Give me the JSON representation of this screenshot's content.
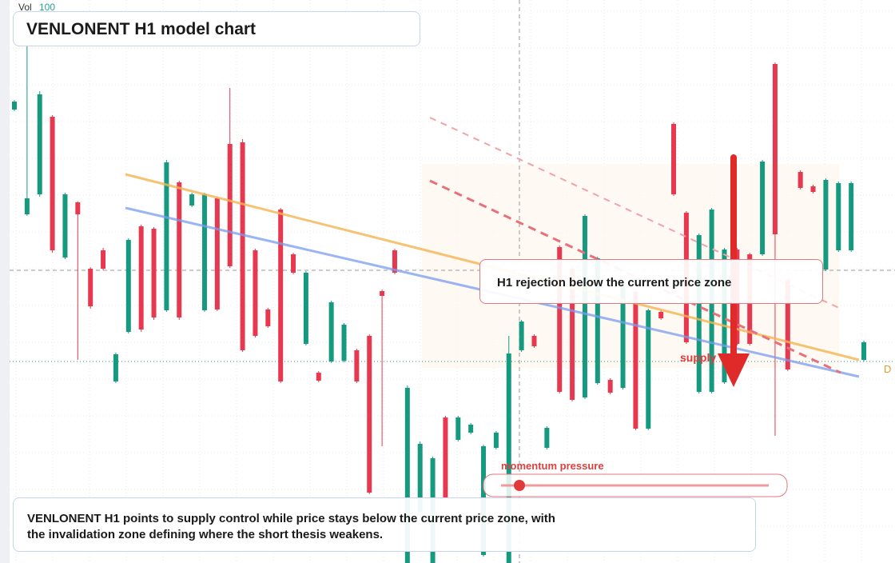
{
  "vol_label": "Vol",
  "vol_value": "100",
  "title": "VENLONENT H1 model chart",
  "annotation": "H1 rejection below the current price zone",
  "zone_label": "supply",
  "slider_label": "momentum pressure",
  "edge_label": "D",
  "description": "VENLONENT H1 points to supply control while price stays below the current price zone, with the invalidation zone defining where the short thesis weakens.",
  "chart_data": {
    "type": "candlestick",
    "ylim": [
      0,
      704
    ],
    "up_color": "#159a80",
    "down_color": "#e8384f",
    "candles": [
      {
        "o": 567,
        "h": 579,
        "l": 565,
        "c": 577
      },
      {
        "o": 436,
        "h": 646,
        "l": 434,
        "c": 456
      },
      {
        "o": 461,
        "h": 590,
        "l": 458,
        "c": 586
      },
      {
        "o": 558,
        "h": 560,
        "l": 388,
        "c": 391
      },
      {
        "o": 382,
        "h": 463,
        "l": 380,
        "c": 461
      },
      {
        "o": 451,
        "h": 452,
        "l": 254,
        "c": 436
      },
      {
        "o": 368,
        "h": 370,
        "l": 318,
        "c": 321
      },
      {
        "o": 391,
        "h": 394,
        "l": 366,
        "c": 368
      },
      {
        "o": 227,
        "h": 263,
        "l": 225,
        "c": 261
      },
      {
        "o": 289,
        "h": 406,
        "l": 287,
        "c": 404
      },
      {
        "o": 421,
        "h": 423,
        "l": 289,
        "c": 292
      },
      {
        "o": 418,
        "h": 420,
        "l": 304,
        "c": 307
      },
      {
        "o": 316,
        "h": 504,
        "l": 314,
        "c": 501
      },
      {
        "o": 476,
        "h": 478,
        "l": 304,
        "c": 307
      },
      {
        "o": 447,
        "h": 463,
        "l": 445,
        "c": 461
      },
      {
        "o": 316,
        "h": 463,
        "l": 314,
        "c": 461
      },
      {
        "o": 456,
        "h": 458,
        "l": 315,
        "c": 317
      },
      {
        "o": 524,
        "h": 594,
        "l": 369,
        "c": 371
      },
      {
        "o": 526,
        "h": 530,
        "l": 264,
        "c": 266
      },
      {
        "o": 391,
        "h": 393,
        "l": 282,
        "c": 284
      },
      {
        "o": 317,
        "h": 319,
        "l": 294,
        "c": 296
      },
      {
        "o": 442,
        "h": 444,
        "l": 225,
        "c": 227
      },
      {
        "o": 386,
        "h": 388,
        "l": 361,
        "c": 363
      },
      {
        "o": 274,
        "h": 365,
        "l": 272,
        "c": 363
      },
      {
        "o": 238,
        "h": 240,
        "l": 226,
        "c": 228
      },
      {
        "o": 252,
        "h": 328,
        "l": 250,
        "c": 326
      },
      {
        "o": 253,
        "h": 300,
        "l": 251,
        "c": 298
      },
      {
        "o": 266,
        "h": 268,
        "l": 225,
        "c": 227
      },
      {
        "o": 284,
        "h": 286,
        "l": 86,
        "c": 88
      },
      {
        "o": 340,
        "h": 342,
        "l": 146,
        "c": 334
      },
      {
        "o": 391,
        "h": 393,
        "l": 361,
        "c": 363
      },
      {
        "o": 0,
        "h": 222,
        "l": 0,
        "c": 219
      },
      {
        "o": 64,
        "h": 152,
        "l": 62,
        "c": 149
      },
      {
        "o": 0,
        "h": 133,
        "l": 0,
        "c": 131
      },
      {
        "o": 182,
        "h": 184,
        "l": 80,
        "c": 82
      },
      {
        "o": 154,
        "h": 184,
        "l": 152,
        "c": 182
      },
      {
        "o": 163,
        "h": 175,
        "l": 161,
        "c": 173
      },
      {
        "o": 10,
        "h": 148,
        "l": 8,
        "c": 146
      },
      {
        "o": 144,
        "h": 165,
        "l": 142,
        "c": 163
      },
      {
        "o": 0,
        "h": 284,
        "l": 0,
        "c": 262
      },
      {
        "o": 266,
        "h": 304,
        "l": 264,
        "c": 302
      },
      {
        "o": 284,
        "h": 286,
        "l": 269,
        "c": 271
      },
      {
        "o": 144,
        "h": 171,
        "l": 142,
        "c": 169
      },
      {
        "o": 395,
        "h": 397,
        "l": 212,
        "c": 214
      },
      {
        "o": 368,
        "h": 370,
        "l": 202,
        "c": 204
      },
      {
        "o": 207,
        "h": 436,
        "l": 205,
        "c": 434
      },
      {
        "o": 225,
        "h": 383,
        "l": 223,
        "c": 381
      },
      {
        "o": 229,
        "h": 231,
        "l": 211,
        "c": 213
      },
      {
        "o": 219,
        "h": 348,
        "l": 217,
        "c": 346
      },
      {
        "o": 339,
        "h": 341,
        "l": 166,
        "c": 168
      },
      {
        "o": 168,
        "h": 318,
        "l": 166,
        "c": 316
      },
      {
        "o": 314,
        "h": 316,
        "l": 304,
        "c": 306
      },
      {
        "o": 549,
        "h": 551,
        "l": 459,
        "c": 461
      },
      {
        "o": 438,
        "h": 440,
        "l": 274,
        "c": 276
      },
      {
        "o": 214,
        "h": 412,
        "l": 212,
        "c": 410
      },
      {
        "o": 214,
        "h": 444,
        "l": 212,
        "c": 442
      },
      {
        "o": 226,
        "h": 394,
        "l": 224,
        "c": 392
      },
      {
        "o": 392,
        "h": 394,
        "l": 272,
        "c": 274
      },
      {
        "o": 386,
        "h": 388,
        "l": 272,
        "c": 274
      },
      {
        "o": 386,
        "h": 504,
        "l": 384,
        "c": 502
      },
      {
        "o": 624,
        "h": 626,
        "l": 159,
        "c": 411
      },
      {
        "o": 354,
        "h": 356,
        "l": 240,
        "c": 242
      },
      {
        "o": 489,
        "h": 491,
        "l": 467,
        "c": 469
      },
      {
        "o": 471,
        "h": 473,
        "l": 462,
        "c": 464
      },
      {
        "o": 367,
        "h": 481,
        "l": 365,
        "c": 479
      },
      {
        "o": 391,
        "h": 477,
        "l": 389,
        "c": 475
      },
      {
        "o": 391,
        "h": 477,
        "l": 389,
        "c": 475
      },
      {
        "o": 254,
        "h": 278,
        "l": 252,
        "c": 276
      }
    ]
  }
}
